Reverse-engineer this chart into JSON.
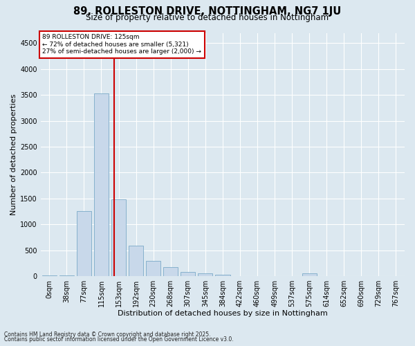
{
  "title1": "89, ROLLESTON DRIVE, NOTTINGHAM, NG7 1JU",
  "title2": "Size of property relative to detached houses in Nottingham",
  "xlabel": "Distribution of detached houses by size in Nottingham",
  "ylabel": "Number of detached properties",
  "bar_color": "#c8d8ea",
  "bar_edge_color": "#7aaac8",
  "categories": [
    "0sqm",
    "38sqm",
    "77sqm",
    "115sqm",
    "153sqm",
    "192sqm",
    "230sqm",
    "268sqm",
    "307sqm",
    "345sqm",
    "384sqm",
    "422sqm",
    "460sqm",
    "499sqm",
    "537sqm",
    "575sqm",
    "614sqm",
    "652sqm",
    "690sqm",
    "729sqm",
    "767sqm"
  ],
  "values": [
    8,
    12,
    1260,
    3530,
    1480,
    590,
    300,
    170,
    85,
    50,
    22,
    5,
    2,
    0,
    0,
    50,
    0,
    0,
    0,
    0,
    0
  ],
  "ylim": [
    0,
    4700
  ],
  "yticks": [
    0,
    500,
    1000,
    1500,
    2000,
    2500,
    3000,
    3500,
    4000,
    4500
  ],
  "vline_x": 3.72,
  "annotation_title": "89 ROLLESTON DRIVE: 125sqm",
  "annotation_line1": "← 72% of detached houses are smaller (5,321)",
  "annotation_line2": "27% of semi-detached houses are larger (2,000) →",
  "annotation_box_color": "#ffffff",
  "annotation_box_edge": "#cc0000",
  "vline_color": "#cc0000",
  "footer1": "Contains HM Land Registry data © Crown copyright and database right 2025.",
  "footer2": "Contains public sector information licensed under the Open Government Licence v3.0.",
  "bg_color": "#dce8f0",
  "plot_bg_color": "#dce8f0",
  "grid_color": "#ffffff",
  "title1_fontsize": 10.5,
  "title2_fontsize": 8.5,
  "xlabel_fontsize": 8,
  "ylabel_fontsize": 8,
  "tick_fontsize": 7,
  "footer_fontsize": 5.5
}
